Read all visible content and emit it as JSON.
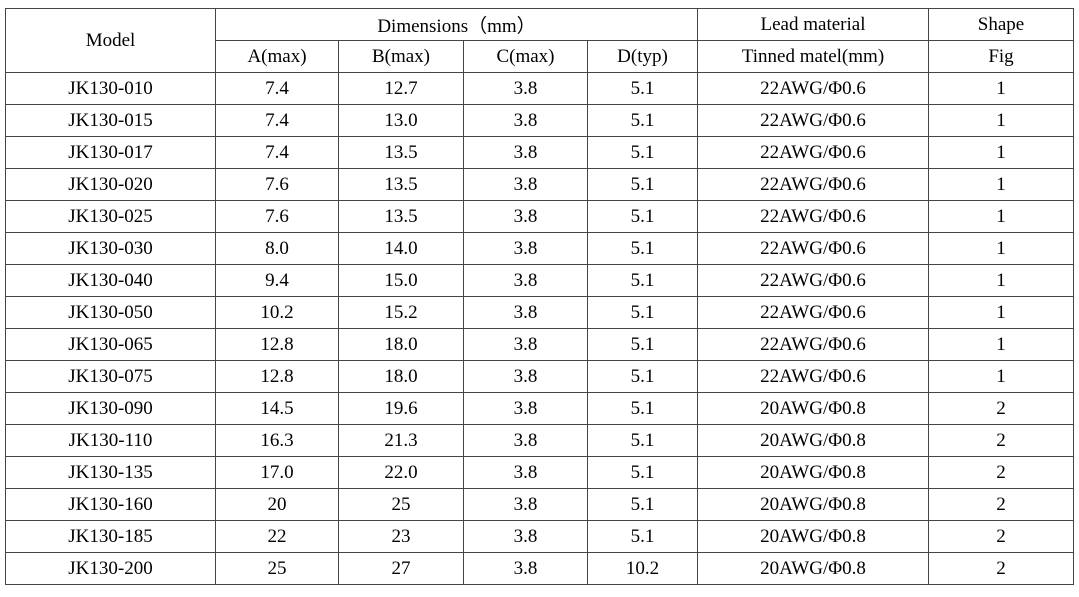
{
  "table": {
    "header": {
      "model": "Model",
      "dimensions": "Dimensions（mm）",
      "lead": "Lead material",
      "shape": "Shape",
      "sub": [
        "A(max)",
        "B(max)",
        "C(max)",
        "D(typ)",
        "Tinned matel(mm)",
        "Fig"
      ]
    },
    "rows": [
      [
        "JK130-010",
        "7.4",
        "12.7",
        "3.8",
        "5.1",
        "22AWG/Φ0.6",
        "1"
      ],
      [
        "JK130-015",
        "7.4",
        "13.0",
        "3.8",
        "5.1",
        "22AWG/Φ0.6",
        "1"
      ],
      [
        "JK130-017",
        "7.4",
        "13.5",
        "3.8",
        "5.1",
        "22AWG/Φ0.6",
        "1"
      ],
      [
        "JK130-020",
        "7.6",
        "13.5",
        "3.8",
        "5.1",
        "22AWG/Φ0.6",
        "1"
      ],
      [
        "JK130-025",
        "7.6",
        "13.5",
        "3.8",
        "5.1",
        "22AWG/Φ0.6",
        "1"
      ],
      [
        "JK130-030",
        "8.0",
        "14.0",
        "3.8",
        "5.1",
        "22AWG/Φ0.6",
        "1"
      ],
      [
        "JK130-040",
        "9.4",
        "15.0",
        "3.8",
        "5.1",
        "22AWG/Φ0.6",
        "1"
      ],
      [
        "JK130-050",
        "10.2",
        "15.2",
        "3.8",
        "5.1",
        "22AWG/Φ0.6",
        "1"
      ],
      [
        "JK130-065",
        "12.8",
        "18.0",
        "3.8",
        "5.1",
        "22AWG/Φ0.6",
        "1"
      ],
      [
        "JK130-075",
        "12.8",
        "18.0",
        "3.8",
        "5.1",
        "22AWG/Φ0.6",
        "1"
      ],
      [
        "JK130-090",
        "14.5",
        "19.6",
        "3.8",
        "5.1",
        "20AWG/Φ0.8",
        "2"
      ],
      [
        "JK130-110",
        "16.3",
        "21.3",
        "3.8",
        "5.1",
        "20AWG/Φ0.8",
        "2"
      ],
      [
        "JK130-135",
        "17.0",
        "22.0",
        "3.8",
        "5.1",
        "20AWG/Φ0.8",
        "2"
      ],
      [
        "JK130-160",
        "20",
        "25",
        "3.8",
        "5.1",
        "20AWG/Φ0.8",
        "2"
      ],
      [
        "JK130-185",
        "22",
        "23",
        "3.8",
        "5.1",
        "20AWG/Φ0.8",
        "2"
      ],
      [
        "JK130-200",
        "25",
        "27",
        "3.8",
        "10.2",
        "20AWG/Φ0.8",
        "2"
      ]
    ]
  }
}
